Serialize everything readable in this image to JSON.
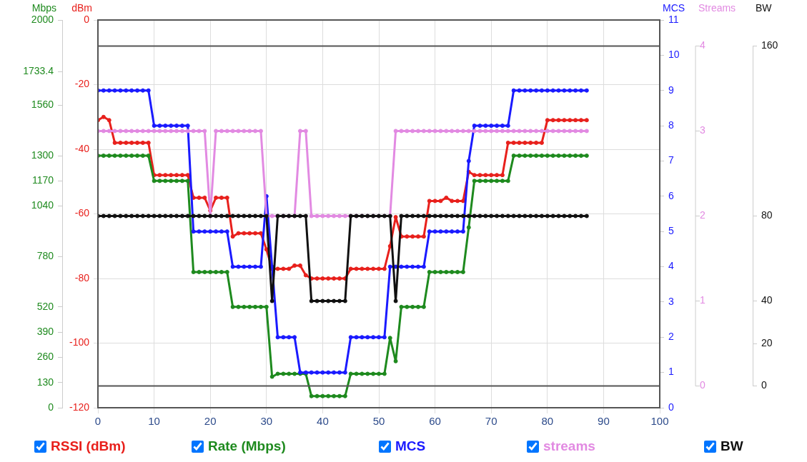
{
  "chart_data": [
    {
      "type": "line",
      "x": [
        0,
        1,
        2,
        3,
        4,
        5,
        6,
        7,
        8,
        9,
        10,
        11,
        12,
        13,
        14,
        15,
        16,
        17,
        18,
        19,
        20,
        21,
        22,
        23,
        24,
        25,
        26,
        27,
        28,
        29,
        30,
        31,
        32,
        33,
        34,
        35,
        36,
        37,
        38,
        39,
        40,
        41,
        42,
        43,
        44,
        45,
        46,
        47,
        48,
        49,
        50,
        51,
        52,
        53,
        54,
        55,
        56,
        57,
        58,
        59,
        60,
        61,
        62,
        63,
        64,
        65,
        66,
        67,
        68,
        69,
        70,
        71,
        72,
        73,
        74,
        75,
        76,
        77,
        78,
        79,
        80,
        81,
        82,
        83,
        84,
        85,
        86,
        87
      ],
      "xlim": [
        0,
        100
      ],
      "xticks": [
        0,
        10,
        20,
        30,
        40,
        50,
        60,
        70,
        80,
        90,
        100
      ],
      "ylabel": "dBm",
      "ylim": [
        -120,
        0
      ],
      "yticks": [
        -120,
        -100,
        -80,
        -60,
        -40,
        -20,
        0
      ],
      "y2label": "Mbps",
      "y2lim": [
        0,
        2000
      ],
      "y2ticks": [
        0,
        130,
        260,
        390,
        520,
        780,
        1040,
        1170,
        1300,
        1560,
        1733.4,
        2000
      ],
      "y3label": "MCS",
      "y3lim": [
        0,
        11
      ],
      "y3ticks": [
        0,
        1,
        2,
        3,
        4,
        5,
        6,
        7,
        8,
        9,
        10,
        11
      ],
      "grid": true,
      "legend": "bottom",
      "marker": "circle",
      "line_style": "solid",
      "series": [
        {
          "name": "RSSI (dBm)",
          "color": "#e8201c",
          "values": [
            -31,
            -30,
            -31,
            -38,
            -38,
            -38,
            -38,
            -38,
            -38,
            -38,
            -48,
            -48,
            -48,
            -48,
            -48,
            -48,
            -48,
            -55,
            -55,
            -55,
            -59,
            -55,
            -55,
            -55,
            -67,
            -66,
            -66,
            -66,
            -66,
            -66,
            -71,
            -77,
            -77,
            -77,
            -77,
            -76,
            -76,
            -79,
            -80,
            -80,
            -80,
            -80,
            -80,
            -80,
            -80,
            -77,
            -77,
            -77,
            -77,
            -77,
            -77,
            -77,
            -70,
            -61,
            -67,
            -67,
            -67,
            -67,
            -67,
            -56,
            -56,
            -56,
            -55,
            -56,
            -56,
            -56,
            -47,
            -48,
            -48,
            -48,
            -48,
            -48,
            -48,
            -38,
            -38,
            -38,
            -38,
            -38,
            -38,
            -38,
            -31,
            -31,
            -31,
            -31,
            -31,
            -31,
            -31,
            -31
          ]
        },
        {
          "name": "Rate (Mbps)",
          "color": "#1e8a1e",
          "axis": "y2",
          "values": [
            1300,
            1300,
            1300,
            1300,
            1300,
            1300,
            1300,
            1300,
            1300,
            1300,
            1170,
            1170,
            1170,
            1170,
            1170,
            1170,
            1170,
            700,
            700,
            700,
            700,
            700,
            700,
            700,
            520,
            520,
            520,
            520,
            520,
            520,
            520,
            160,
            175,
            175,
            175,
            175,
            175,
            175,
            60,
            60,
            60,
            60,
            60,
            60,
            60,
            175,
            175,
            175,
            175,
            175,
            175,
            175,
            360,
            240,
            520,
            520,
            520,
            520,
            520,
            700,
            700,
            700,
            700,
            700,
            700,
            700,
            930,
            1170,
            1170,
            1170,
            1170,
            1170,
            1170,
            1170,
            1300,
            1300,
            1300,
            1300,
            1300,
            1300,
            1300,
            1300,
            1300,
            1300,
            1300,
            1300,
            1300,
            1300
          ]
        },
        {
          "name": "MCS",
          "color": "#1a1aff",
          "axis": "y3",
          "values": [
            9,
            9,
            9,
            9,
            9,
            9,
            9,
            9,
            9,
            9,
            8,
            8,
            8,
            8,
            8,
            8,
            8,
            5,
            5,
            5,
            5,
            5,
            5,
            5,
            4,
            4,
            4,
            4,
            4,
            4,
            6,
            4,
            2,
            2,
            2,
            2,
            1,
            1,
            1,
            1,
            1,
            1,
            1,
            1,
            1,
            2,
            2,
            2,
            2,
            2,
            2,
            2,
            4,
            4,
            4,
            4,
            4,
            4,
            4,
            5,
            5,
            5,
            5,
            5,
            5,
            5,
            7,
            8,
            8,
            8,
            8,
            8,
            8,
            8,
            9,
            9,
            9,
            9,
            9,
            9,
            9,
            9,
            9,
            9,
            9,
            9,
            9,
            9
          ]
        }
      ]
    },
    {
      "type": "line",
      "x": [
        0,
        1,
        2,
        3,
        4,
        5,
        6,
        7,
        8,
        9,
        10,
        11,
        12,
        13,
        14,
        15,
        16,
        17,
        18,
        19,
        20,
        21,
        22,
        23,
        24,
        25,
        26,
        27,
        28,
        29,
        30,
        31,
        32,
        33,
        34,
        35,
        36,
        37,
        38,
        39,
        40,
        41,
        42,
        43,
        44,
        45,
        46,
        47,
        48,
        49,
        50,
        51,
        52,
        53,
        54,
        55,
        56,
        57,
        58,
        59,
        60,
        61,
        62,
        63,
        64,
        65,
        66,
        67,
        68,
        69,
        70,
        71,
        72,
        73,
        74,
        75,
        76,
        77,
        78,
        79,
        80,
        81,
        82,
        83,
        84,
        85,
        86,
        87
      ],
      "xlim": [
        0,
        100
      ],
      "tick_labels": "y",
      "ylabel": "Streams",
      "ylim": [
        0,
        4
      ],
      "yticks": [
        0,
        1,
        2,
        3,
        4
      ],
      "y2label": "BW",
      "y2lim": [
        0,
        160
      ],
      "y2ticks": [
        0,
        20,
        40,
        80,
        160
      ],
      "legend": "bottom",
      "marker": "circle",
      "line_style": "solid",
      "series": [
        {
          "name": "streams",
          "color": "#e28ae2",
          "values": [
            3,
            3,
            3,
            3,
            3,
            3,
            3,
            3,
            3,
            3,
            3,
            3,
            3,
            3,
            3,
            3,
            3,
            3,
            3,
            3,
            2,
            3,
            3,
            3,
            3,
            3,
            3,
            3,
            3,
            3,
            2,
            2,
            2,
            2,
            2,
            2,
            3,
            3,
            2,
            2,
            2,
            2,
            2,
            2,
            2,
            2,
            2,
            2,
            2,
            2,
            2,
            2,
            2,
            3,
            3,
            3,
            3,
            3,
            3,
            3,
            3,
            3,
            3,
            3,
            3,
            3,
            3,
            3,
            3,
            3,
            3,
            3,
            3,
            3,
            3,
            3,
            3,
            3,
            3,
            3,
            3,
            3,
            3,
            3,
            3,
            3,
            3,
            3
          ]
        },
        {
          "name": "BW",
          "color": "#111111",
          "axis": "y2",
          "values": [
            80,
            80,
            80,
            80,
            80,
            80,
            80,
            80,
            80,
            80,
            80,
            80,
            80,
            80,
            80,
            80,
            80,
            80,
            80,
            80,
            80,
            80,
            80,
            80,
            80,
            80,
            80,
            80,
            80,
            80,
            80,
            40,
            80,
            80,
            80,
            80,
            80,
            80,
            40,
            40,
            40,
            40,
            40,
            40,
            40,
            80,
            80,
            80,
            80,
            80,
            80,
            80,
            80,
            40,
            80,
            80,
            80,
            80,
            80,
            80,
            80,
            80,
            80,
            80,
            80,
            80,
            80,
            80,
            80,
            80,
            80,
            80,
            80,
            80,
            80,
            80,
            80,
            80,
            80,
            80,
            80,
            80,
            80,
            80,
            80,
            80,
            80,
            80
          ]
        }
      ]
    }
  ]
}
